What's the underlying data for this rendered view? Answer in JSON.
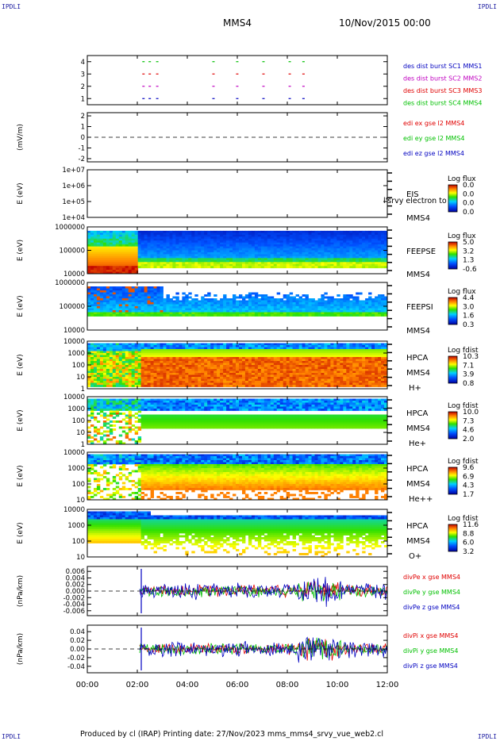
{
  "corners": {
    "tl": "IPDLI",
    "tr": "IPDLI",
    "bl": "IPDLI",
    "br": "IPDLI"
  },
  "header": {
    "spacecraft": "MMS4",
    "date": "10/Nov/2015 00:00"
  },
  "footer": {
    "text": "Produced by cl (IRAP)   Printing date: 27/Nov/2023   mms_mms4_srvy_vue_web2.cl"
  },
  "colors": {
    "red": "#e00000",
    "green": "#00c000",
    "blue": "#0000c0",
    "magenta": "#c000c0"
  },
  "chart_data": {
    "type": "multi-panel time series",
    "time_axis": {
      "ticks": [
        "00:00",
        "02:00",
        "04:00",
        "06:00",
        "08:00",
        "10:00",
        "12:00"
      ],
      "range_hours": [
        0,
        12
      ]
    },
    "panels": [
      {
        "id": "burst",
        "type": "event",
        "ylim": [
          0.5,
          4.5
        ],
        "yticks": [
          "4",
          "3",
          "2",
          "1"
        ],
        "ylabel": "",
        "legend": [
          {
            "text": "des dist burst SC1 MMS1",
            "color": "#0000c0"
          },
          {
            "text": "des dist burst SC2 MMS2",
            "color": "#c000c0"
          },
          {
            "text": "des dist burst SC3 MMS3",
            "color": "#e00000"
          },
          {
            "text": "des dist burst SC4 MMS4",
            "color": "#00c000"
          }
        ],
        "bursts_hours": [
          2.2,
          2.45,
          2.75,
          5.0,
          5.95,
          7.0,
          8.05,
          8.6
        ]
      },
      {
        "id": "edi",
        "type": "line",
        "ylim": [
          -2.3,
          2.3
        ],
        "yticks": [
          "2",
          "1",
          "0",
          "-1",
          "-2"
        ],
        "ylabel": "(mV/m)",
        "zero_dashed": true,
        "legend": [
          {
            "text": "edi ex gse l2 MMS4",
            "color": "#e00000"
          },
          {
            "text": "edi ey gse l2 MMS4",
            "color": "#00c000"
          },
          {
            "text": "edi ez gse l2 MMS4",
            "color": "#0000c0"
          }
        ]
      },
      {
        "id": "eis",
        "type": "spectrogram",
        "ylabel": "E (eV)",
        "yticks": [
          "1e+07",
          "1e+06",
          "1e+05",
          "1e+04"
        ],
        "side_labels": [
          "EIS",
          "MMS4"
        ],
        "overlay_label": "l'srvy electron to",
        "colorbar": {
          "title": "Log flux",
          "values": [
            "0.0",
            "0.0",
            "0.0",
            "0.0"
          ]
        }
      },
      {
        "id": "feepse",
        "type": "spectrogram",
        "ylabel": "E (eV)",
        "yticks": [
          "1000000",
          "100000",
          "10000"
        ],
        "side_labels": [
          "FEEPSE",
          "MMS4"
        ],
        "colorbar": {
          "title": "Log flux",
          "values": [
            "5.0",
            "3.2",
            "1.3",
            "-0.6"
          ]
        }
      },
      {
        "id": "feepsi",
        "type": "spectrogram",
        "ylabel": "E (eV)",
        "yticks": [
          "1000000",
          "100000",
          "10000"
        ],
        "side_labels": [
          "FEEPSI",
          "MMS4"
        ],
        "colorbar": {
          "title": "Log flux",
          "values": [
            "4.4",
            "3.0",
            "1.6",
            "0.3"
          ]
        }
      },
      {
        "id": "hpca_h",
        "type": "spectrogram",
        "ylabel": "E (eV)",
        "yticks": [
          "10000",
          "1000",
          "100",
          "10",
          "1"
        ],
        "side_labels": [
          "HPCA",
          "MMS4",
          "H+"
        ],
        "colorbar": {
          "title": "Log fdist",
          "values": [
            "10.3",
            "7.1",
            "3.9",
            "0.8"
          ]
        }
      },
      {
        "id": "hpca_he",
        "type": "spectrogram",
        "ylabel": "E (eV)",
        "yticks": [
          "10000",
          "1000",
          "100",
          "10",
          "1"
        ],
        "side_labels": [
          "HPCA",
          "MMS4",
          "He+"
        ],
        "colorbar": {
          "title": "Log fdist",
          "values": [
            "10.0",
            "7.3",
            "4.6",
            "2.0"
          ]
        }
      },
      {
        "id": "hpca_hepp",
        "type": "spectrogram",
        "ylabel": "E (eV)",
        "yticks": [
          "10000",
          "1000",
          "100",
          "10"
        ],
        "side_labels": [
          "HPCA",
          "MMS4",
          "He++"
        ],
        "colorbar": {
          "title": "Log fdist",
          "values": [
            "9.6",
            "6.9",
            "4.3",
            "1.7"
          ]
        }
      },
      {
        "id": "hpca_o",
        "type": "spectrogram",
        "ylabel": "E (eV)",
        "yticks": [
          "10000",
          "1000",
          "100",
          "10"
        ],
        "side_labels": [
          "HPCA",
          "MMS4",
          "O+"
        ],
        "colorbar": {
          "title": "Log fdist",
          "values": [
            "11.6",
            "8.8",
            "6.0",
            "3.2"
          ]
        }
      },
      {
        "id": "divpe",
        "type": "line",
        "ylabel": "(nPa/km)",
        "ylim": [
          -0.0075,
          0.0075
        ],
        "yticks": [
          "0.006",
          "0.004",
          "0.002",
          "0.000",
          "-0.002",
          "-0.004",
          "-0.006"
        ],
        "zero_dashed": true,
        "legend": [
          {
            "text": "divPe x gse MMS4",
            "color": "#e00000"
          },
          {
            "text": "divPe y gse MMS4",
            "color": "#00c000"
          },
          {
            "text": "divPe z gse MMS4",
            "color": "#0000c0"
          }
        ]
      },
      {
        "id": "divpi",
        "type": "line",
        "ylabel": "(nPa/km)",
        "ylim": [
          -0.055,
          0.055
        ],
        "yticks": [
          "0.04",
          "0.02",
          "0.00",
          "-0.02",
          "-0.04"
        ],
        "zero_dashed": true,
        "legend": [
          {
            "text": "divPi x gse MMS4",
            "color": "#e00000"
          },
          {
            "text": "divPi y gse MMS4",
            "color": "#00c000"
          },
          {
            "text": "divPi z gse MMS4",
            "color": "#0000c0"
          }
        ]
      }
    ]
  }
}
